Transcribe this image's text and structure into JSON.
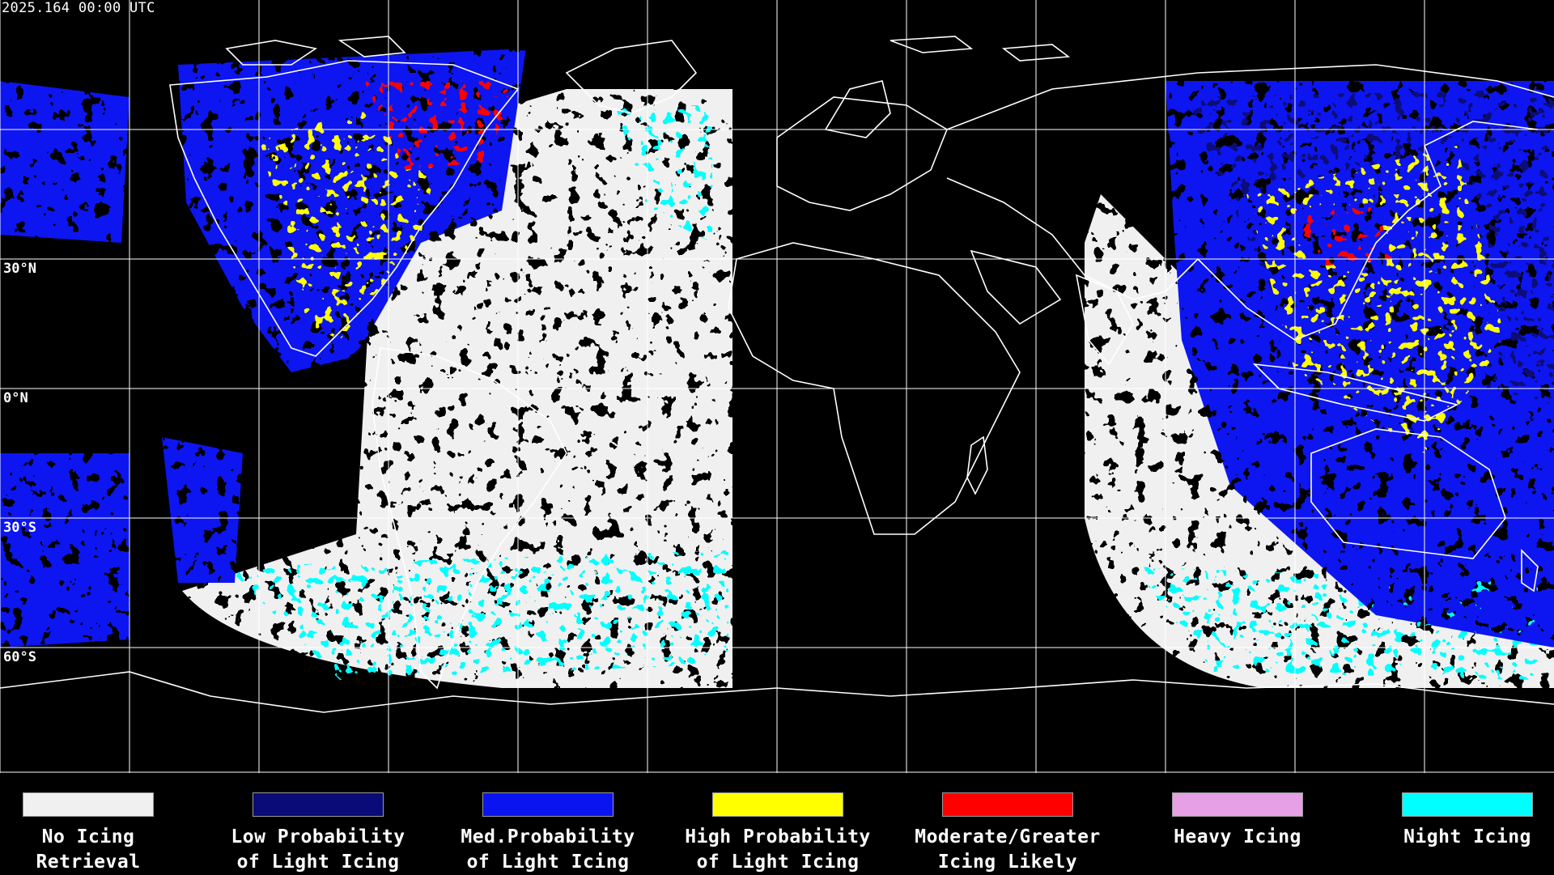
{
  "header": {
    "timestamp": "2025.164 00:00 UTC"
  },
  "map": {
    "lat_labels": [
      "30°N",
      "0°N",
      "30°S",
      "60°S"
    ],
    "background_color": "#000000",
    "grid_color": "#ffffff",
    "coast_color": "#ffffff"
  },
  "legend": [
    {
      "line1": "No Icing",
      "line2": "Retrieval",
      "color": "#f0f0f0"
    },
    {
      "line1": "Low Probability",
      "line2": "of Light Icing",
      "color": "#0a0a78"
    },
    {
      "line1": "Med.Probability",
      "line2": "of Light Icing",
      "color": "#0a14f0"
    },
    {
      "line1": "High Probability",
      "line2": "of Light Icing",
      "color": "#ffff00"
    },
    {
      "line1": "Moderate/Greater",
      "line2": "Icing Likely",
      "color": "#ff0000"
    },
    {
      "line1": "Heavy Icing",
      "line2": "",
      "color": "#e6a0e6"
    },
    {
      "line1": "Night Icing",
      "line2": "",
      "color": "#00ffff"
    }
  ]
}
